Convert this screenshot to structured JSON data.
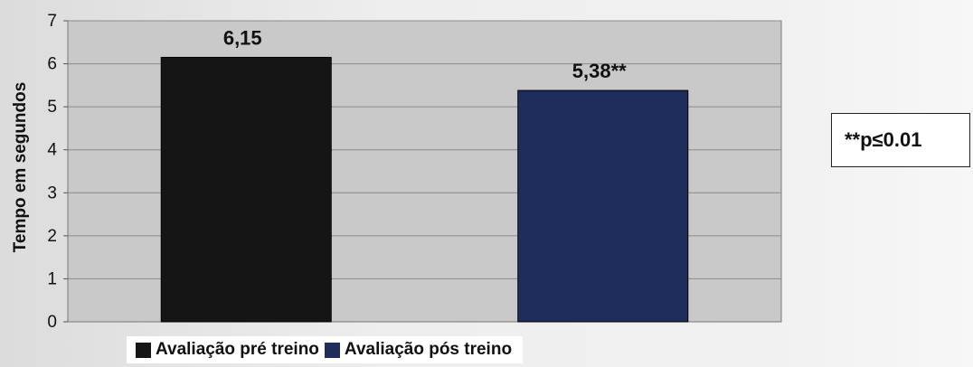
{
  "chart_data": {
    "type": "bar",
    "categories": [
      "Avaliação pré treino",
      "Avaliação pós treino"
    ],
    "values": [
      6.15,
      5.38
    ],
    "data_labels": [
      "6,15",
      "5,38**"
    ],
    "colors": [
      "#151515",
      "#1f2d5c"
    ],
    "ylabel": "Tempo em segundos",
    "ylim": [
      0,
      7
    ],
    "yticks": [
      "0",
      "1",
      "2",
      "3",
      "4",
      "5",
      "6",
      "7"
    ],
    "grid": true,
    "plot_background": "#c9c9c9",
    "legend": {
      "position": "bottom",
      "items": [
        {
          "label": "Avaliação pré treino",
          "color": "#151515"
        },
        {
          "label": "Avaliação pós treino",
          "color": "#1f2d5c"
        }
      ]
    },
    "annotation": "**p≤0.01"
  }
}
